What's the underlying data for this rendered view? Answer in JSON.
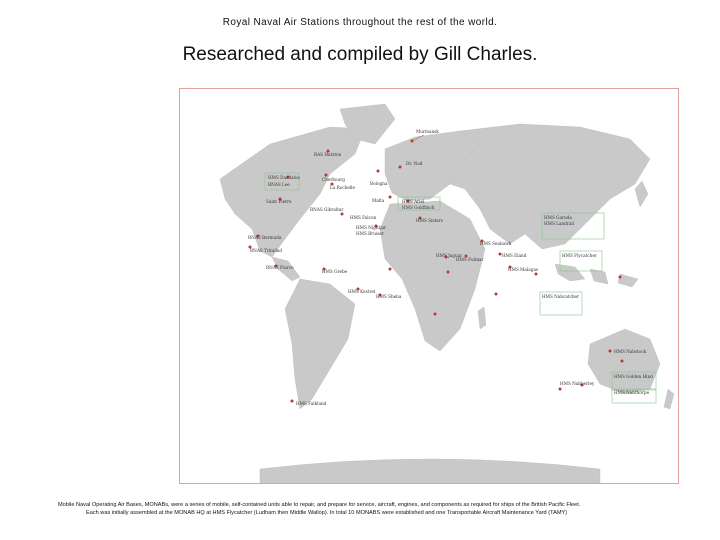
{
  "header": {
    "caption": "Royal Naval Air Stations throughout the rest of the world.",
    "title": "Researched and compiled by Gill Charles."
  },
  "map": {
    "colors": {
      "land": "#c9c9c9",
      "ocean": "#ffffff",
      "frame": "#e2a0a0",
      "marker": "#c0392b",
      "group_box": "#8bc48b"
    },
    "labels": [
      "Murmansk",
      "RAS Hatston",
      "HMS Daedalus",
      "RNAS Lee",
      "Cherbourg",
      "La Rochelle",
      "Bologna",
      "Dr. Nod",
      "Saint Pierre",
      "RNAS Gibraltar",
      "Malta",
      "HMS Ariel",
      "HMS Goldfinch",
      "HMS Falcon",
      "HMS Sisters",
      "HMS Nightjar",
      "HMS Bruiser",
      "RNAS Bermuda",
      "RNAS Trinidad",
      "RNAS Piarco",
      "HMS Grebe",
      "HMS Kestrel",
      "HMS Sheba",
      "HMS Jaguar",
      "HMS Fulmar",
      "HMS Seahawk",
      "HMS Eland",
      "HMS Malagas",
      "HMS Garuda",
      "HMS Landrail",
      "HMS Flycatcher",
      "HMS Nabcatcher",
      "HMS Nabstock",
      "HMS Golden Hind",
      "HMS Nabthorpe",
      "HMS Nabberley",
      "HMS Falkland"
    ]
  },
  "footnote": {
    "line1": "Mobile Naval Operating Air Bases, MONABs, were a series of mobile, self-contained units able to repair, and prepare for service, aircraft, engines, and components as required for ships of the British Pacific Fleet.",
    "line2": "Each was initially assembled at the MONAB HQ at HMS Flycatcher (Ludham then Middle Wallop). In total 10 MONABS were established and one Transportable Aircraft Maintenance Yard (TAMY)"
  }
}
